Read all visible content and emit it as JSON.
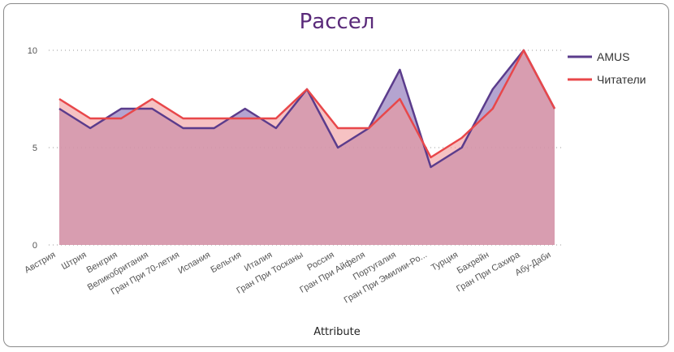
{
  "chart_data": {
    "type": "area",
    "title": "Рассел",
    "xlabel": "Attribute",
    "ylabel": "",
    "ylim": [
      0,
      10
    ],
    "yticks": [
      "0",
      "5",
      "10"
    ],
    "grid": true,
    "legend": "right",
    "categories": [
      "Австрия",
      "Штрия",
      "Венгрия",
      "Великобритания",
      "Гран При 70-летия",
      "Испания",
      "Бельгия",
      "Италия",
      "Гран При Тосканы",
      "Россия",
      "Гран При Айфеля",
      "Португалия",
      "Гран При Эмилии-Ро...",
      "Турция",
      "Бахрейн",
      "Гран При Сахира",
      "Абу-Даби"
    ],
    "series": [
      {
        "name": "AMUS",
        "values": [
          7,
          6,
          7,
          7,
          6,
          6,
          7,
          6,
          8,
          5,
          6,
          9,
          4,
          5,
          8,
          10,
          7
        ],
        "color": "#5b3c8c",
        "fill": "#9b85c0"
      },
      {
        "name": "Читатели",
        "values": [
          7.5,
          6.5,
          6.5,
          7.5,
          6.5,
          6.5,
          6.5,
          6.5,
          8,
          6,
          6,
          7.5,
          4.5,
          5.5,
          7,
          10,
          7
        ],
        "color": "#e8474a",
        "fill": "#f09a9b"
      }
    ]
  }
}
